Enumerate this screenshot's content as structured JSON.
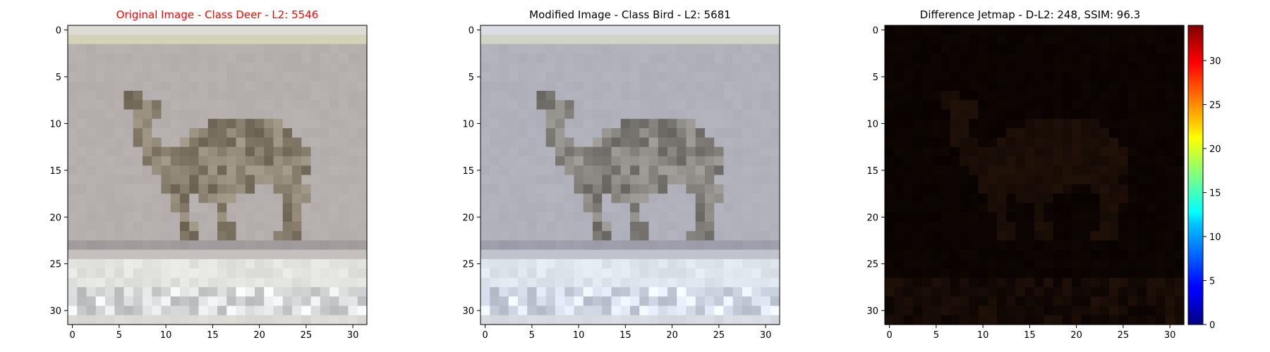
{
  "figure": {
    "panels": [
      {
        "title": "Original Image - Class Deer - L2: 5546",
        "title_color": "#ff0000",
        "x_ticks": [
          "0",
          "5",
          "10",
          "15",
          "20",
          "25",
          "30"
        ],
        "y_ticks": [
          "0",
          "5",
          "10",
          "15",
          "20",
          "25",
          "30"
        ]
      },
      {
        "title": "Modified Image - Class Bird - L2: 5681",
        "title_color": "#000000",
        "x_ticks": [
          "0",
          "5",
          "10",
          "15",
          "20",
          "25",
          "30"
        ],
        "y_ticks": [
          "0",
          "5",
          "10",
          "15",
          "20",
          "25",
          "30"
        ]
      },
      {
        "title": "Difference Jetmap - D-L2: 248, SSIM: 96.3",
        "title_color": "#000000",
        "x_ticks": [
          "0",
          "5",
          "10",
          "15",
          "20",
          "25",
          "30"
        ],
        "y_ticks": [
          "0",
          "5",
          "10",
          "15",
          "20",
          "25",
          "30"
        ]
      }
    ],
    "colorbar": {
      "ticks": [
        "0",
        "5",
        "10",
        "15",
        "20",
        "25",
        "30"
      ],
      "colormap": "jet",
      "range": [
        0,
        34
      ]
    }
  },
  "chart_data": [
    {
      "type": "heatmap",
      "title": "Original Image - Class Deer - L2: 5546",
      "image_size": [
        32,
        32
      ],
      "xlim": [
        -0.5,
        31.5
      ],
      "ylim": [
        31.5,
        -0.5
      ],
      "x_ticks": [
        0,
        5,
        10,
        15,
        20,
        25,
        30
      ],
      "y_ticks": [
        0,
        5,
        10,
        15,
        20,
        25,
        30
      ],
      "content": "pixelated photo of a deer on grey background with pale ground strip"
    },
    {
      "type": "heatmap",
      "title": "Modified Image - Class Bird - L2: 5681",
      "image_size": [
        32,
        32
      ],
      "xlim": [
        -0.5,
        31.5
      ],
      "ylim": [
        31.5,
        -0.5
      ],
      "x_ticks": [
        0,
        5,
        10,
        15,
        20,
        25,
        30
      ],
      "y_ticks": [
        0,
        5,
        10,
        15,
        20,
        25,
        30
      ],
      "content": "same deer image with slightly bluish tint"
    },
    {
      "type": "heatmap",
      "title": "Difference Jetmap - D-L2: 248, SSIM: 96.3",
      "image_size": [
        32,
        32
      ],
      "xlim": [
        -0.5,
        31.5
      ],
      "ylim": [
        31.5,
        -0.5
      ],
      "x_ticks": [
        0,
        5,
        10,
        15,
        20,
        25,
        30
      ],
      "y_ticks": [
        0,
        5,
        10,
        15,
        20,
        25,
        30
      ],
      "colormap": "jet",
      "colorbar_range": [
        0,
        34
      ],
      "colorbar_ticks": [
        0,
        5,
        10,
        15,
        20,
        25,
        30
      ],
      "content": "near-black difference map with faint deer silhouette"
    }
  ]
}
